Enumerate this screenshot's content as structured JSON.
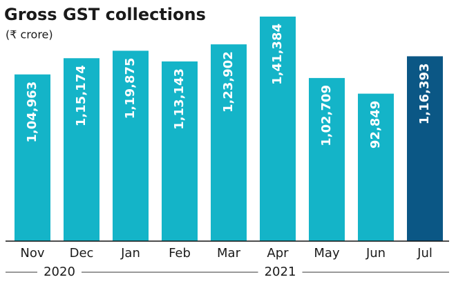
{
  "chart_data": {
    "type": "bar",
    "title": "Gross GST collections",
    "subtitle": "(₹ crore)",
    "categories": [
      "Nov",
      "Dec",
      "Jan",
      "Feb",
      "Mar",
      "Apr",
      "May",
      "Jun",
      "Jul"
    ],
    "years": [
      "2020",
      "2020",
      "2021",
      "2021",
      "2021",
      "2021",
      "2021",
      "2021",
      "2021"
    ],
    "values": [
      104963,
      115174,
      119875,
      113143,
      123902,
      141384,
      102709,
      92849,
      116393
    ],
    "value_labels": [
      "1,04,963",
      "1,15,174",
      "1,19,875",
      "1,13,143",
      "1,23,902",
      "1,41,384",
      "1,02,709",
      "92,849",
      "1,16,393"
    ],
    "colors": [
      "#14b4c8",
      "#14b4c8",
      "#14b4c8",
      "#14b4c8",
      "#14b4c8",
      "#14b4c8",
      "#14b4c8",
      "#14b4c8",
      "#0b5785"
    ]
  }
}
